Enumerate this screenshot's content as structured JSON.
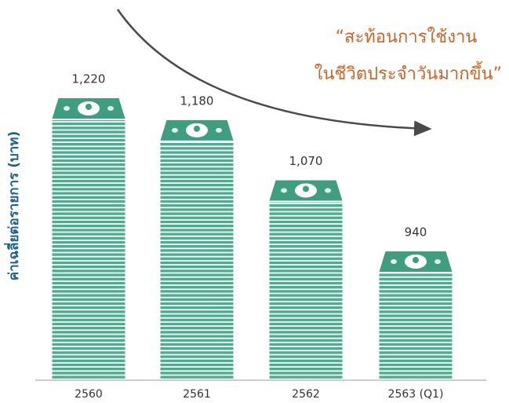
{
  "chart_data": {
    "type": "bar",
    "y_label": "ค่าเฉลี่ยต่อรายการ (บาท)",
    "annotation": [
      "“สะท้อนการใช้งาน",
      "ในชีวิตประจำวันมากขึ้น”"
    ],
    "categories": [
      "2560",
      "2561",
      "2562",
      "2563 (Q1)"
    ],
    "values": [
      1220,
      1180,
      1070,
      940
    ],
    "value_labels": [
      "1,220",
      "1,180",
      "1,070",
      "940"
    ],
    "color": "#4aad8e",
    "bill_color": "#3f9d80"
  }
}
